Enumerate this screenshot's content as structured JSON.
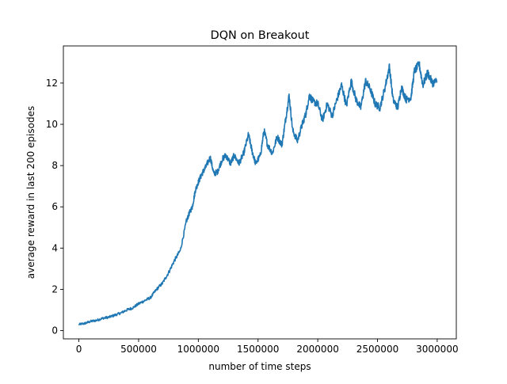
{
  "chart_data": {
    "type": "line",
    "title": "DQN on Breakout",
    "xlabel": "number of time steps",
    "ylabel": "average reward in last 200 episodes",
    "xlim": [
      -130000,
      3160000
    ],
    "ylim": [
      -0.4,
      13.8
    ],
    "xticks": [
      0,
      500000,
      1000000,
      1500000,
      2000000,
      2500000,
      3000000
    ],
    "xtick_labels": [
      "0",
      "500000",
      "1000000",
      "1500000",
      "2000000",
      "2500000",
      "3000000"
    ],
    "yticks": [
      0,
      2,
      4,
      6,
      8,
      10,
      12
    ],
    "ytick_labels": [
      "0",
      "2",
      "4",
      "6",
      "8",
      "10",
      "12"
    ],
    "grid": false,
    "legend": "none",
    "series": [
      {
        "color": "#1f77b4",
        "x": [
          0,
          50000,
          100000,
          150000,
          200000,
          250000,
          300000,
          350000,
          400000,
          450000,
          500000,
          550000,
          600000,
          650000,
          700000,
          750000,
          800000,
          850000,
          900000,
          925000,
          950000,
          975000,
          1000000,
          1030000,
          1060000,
          1100000,
          1130000,
          1160000,
          1200000,
          1230000,
          1270000,
          1300000,
          1340000,
          1380000,
          1420000,
          1450000,
          1480000,
          1520000,
          1550000,
          1580000,
          1620000,
          1660000,
          1700000,
          1730000,
          1760000,
          1790000,
          1830000,
          1870000,
          1900000,
          1930000,
          1960000,
          2000000,
          2040000,
          2080000,
          2120000,
          2160000,
          2200000,
          2240000,
          2280000,
          2320000,
          2360000,
          2400000,
          2440000,
          2480000,
          2520000,
          2560000,
          2600000,
          2630000,
          2670000,
          2700000,
          2740000,
          2780000,
          2810000,
          2850000,
          2880000,
          2920000,
          2960000,
          3000000
        ],
        "y": [
          0.3,
          0.35,
          0.45,
          0.5,
          0.6,
          0.65,
          0.75,
          0.85,
          1.0,
          1.1,
          1.3,
          1.45,
          1.6,
          2.0,
          2.3,
          2.8,
          3.4,
          3.9,
          5.3,
          5.7,
          6.0,
          6.8,
          7.2,
          7.6,
          7.9,
          8.4,
          7.6,
          7.7,
          8.3,
          8.5,
          8.1,
          8.5,
          8.1,
          8.6,
          9.5,
          8.7,
          8.1,
          8.5,
          9.7,
          9.0,
          8.6,
          9.4,
          9.0,
          10.2,
          11.4,
          9.7,
          9.2,
          10.0,
          10.5,
          11.4,
          11.1,
          11.0,
          10.2,
          11.0,
          10.4,
          11.2,
          11.9,
          10.9,
          12.1,
          11.2,
          10.8,
          12.1,
          11.7,
          11.0,
          10.8,
          11.7,
          12.8,
          11.2,
          10.8,
          11.8,
          11.2,
          11.3,
          12.6,
          12.9,
          11.9,
          12.5,
          12.0,
          12.1
        ]
      }
    ]
  }
}
